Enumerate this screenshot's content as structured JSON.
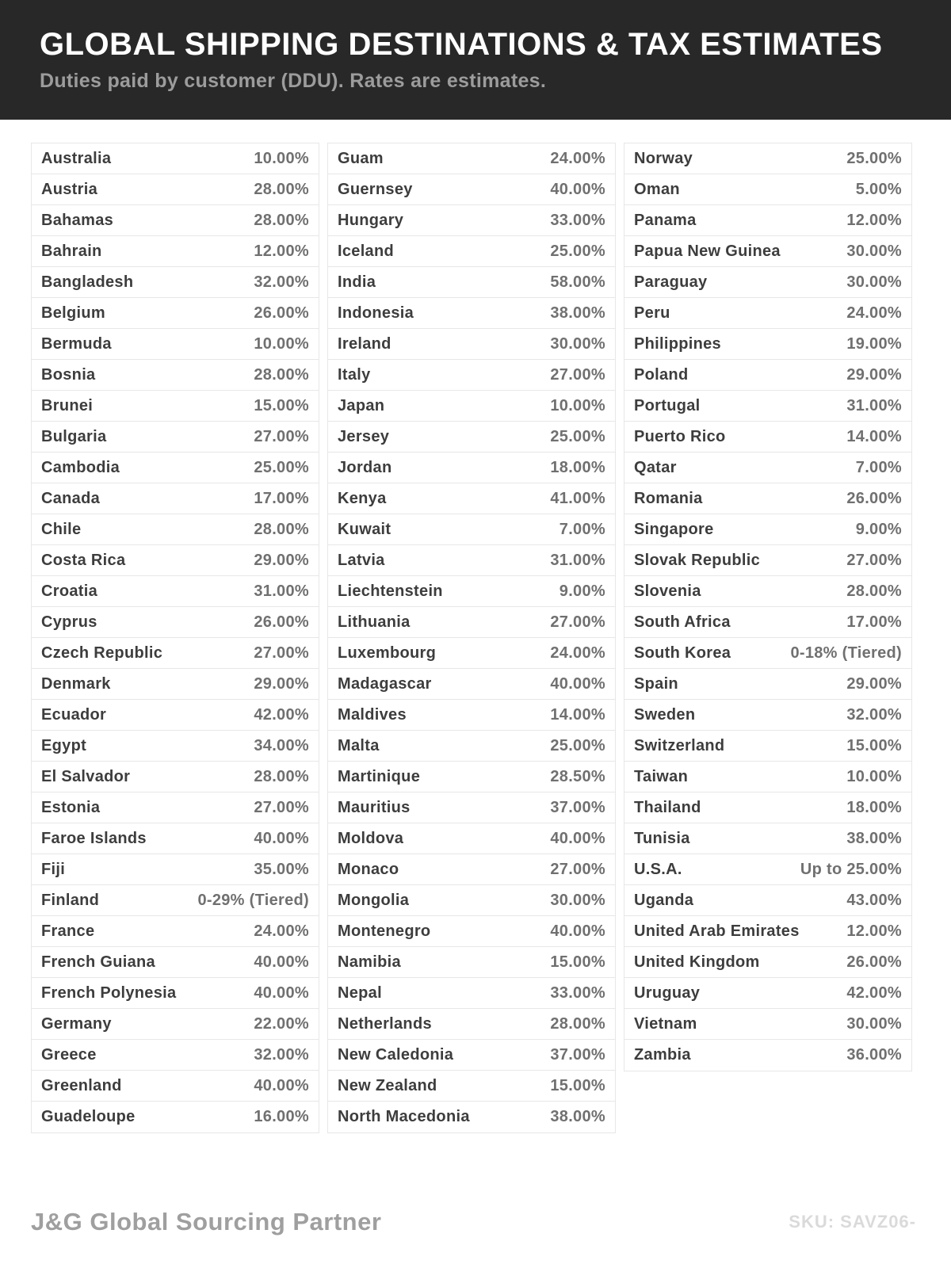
{
  "header": {
    "title": "GLOBAL SHIPPING DESTINATIONS & TAX ESTIMATES",
    "subtitle": "Duties paid by customer (DDU). Rates are estimates."
  },
  "table": {
    "columns": [
      {
        "rows": [
          {
            "country": "Australia",
            "rate": "10.00%"
          },
          {
            "country": "Austria",
            "rate": "28.00%"
          },
          {
            "country": "Bahamas",
            "rate": "28.00%"
          },
          {
            "country": "Bahrain",
            "rate": "12.00%"
          },
          {
            "country": "Bangladesh",
            "rate": "32.00%"
          },
          {
            "country": "Belgium",
            "rate": "26.00%"
          },
          {
            "country": "Bermuda",
            "rate": "10.00%"
          },
          {
            "country": "Bosnia",
            "rate": "28.00%"
          },
          {
            "country": "Brunei",
            "rate": "15.00%"
          },
          {
            "country": "Bulgaria",
            "rate": "27.00%"
          },
          {
            "country": "Cambodia",
            "rate": "25.00%"
          },
          {
            "country": "Canada",
            "rate": "17.00%"
          },
          {
            "country": "Chile",
            "rate": "28.00%"
          },
          {
            "country": "Costa Rica",
            "rate": "29.00%"
          },
          {
            "country": "Croatia",
            "rate": "31.00%"
          },
          {
            "country": "Cyprus",
            "rate": "26.00%"
          },
          {
            "country": "Czech Republic",
            "rate": "27.00%"
          },
          {
            "country": "Denmark",
            "rate": "29.00%"
          },
          {
            "country": "Ecuador",
            "rate": "42.00%"
          },
          {
            "country": "Egypt",
            "rate": "34.00%"
          },
          {
            "country": "El Salvador",
            "rate": "28.00%"
          },
          {
            "country": "Estonia",
            "rate": "27.00%"
          },
          {
            "country": "Faroe Islands",
            "rate": "40.00%"
          },
          {
            "country": "Fiji",
            "rate": "35.00%"
          },
          {
            "country": "Finland",
            "rate": "0-29% (Tiered)"
          },
          {
            "country": "France",
            "rate": "24.00%"
          },
          {
            "country": "French Guiana",
            "rate": "40.00%"
          },
          {
            "country": "French Polynesia",
            "rate": "40.00%"
          },
          {
            "country": "Germany",
            "rate": "22.00%"
          },
          {
            "country": "Greece",
            "rate": "32.00%"
          },
          {
            "country": "Greenland",
            "rate": "40.00%"
          },
          {
            "country": "Guadeloupe",
            "rate": "16.00%"
          }
        ]
      },
      {
        "rows": [
          {
            "country": "Guam",
            "rate": "24.00%"
          },
          {
            "country": "Guernsey",
            "rate": "40.00%"
          },
          {
            "country": "Hungary",
            "rate": "33.00%"
          },
          {
            "country": "Iceland",
            "rate": "25.00%"
          },
          {
            "country": "India",
            "rate": "58.00%"
          },
          {
            "country": "Indonesia",
            "rate": "38.00%"
          },
          {
            "country": "Ireland",
            "rate": "30.00%"
          },
          {
            "country": "Italy",
            "rate": "27.00%"
          },
          {
            "country": "Japan",
            "rate": "10.00%"
          },
          {
            "country": "Jersey",
            "rate": "25.00%"
          },
          {
            "country": "Jordan",
            "rate": "18.00%"
          },
          {
            "country": "Kenya",
            "rate": "41.00%"
          },
          {
            "country": "Kuwait",
            "rate": "7.00%"
          },
          {
            "country": "Latvia",
            "rate": "31.00%"
          },
          {
            "country": "Liechtenstein",
            "rate": "9.00%"
          },
          {
            "country": "Lithuania",
            "rate": "27.00%"
          },
          {
            "country": "Luxembourg",
            "rate": "24.00%"
          },
          {
            "country": "Madagascar",
            "rate": "40.00%"
          },
          {
            "country": "Maldives",
            "rate": "14.00%"
          },
          {
            "country": "Malta",
            "rate": "25.00%"
          },
          {
            "country": "Martinique",
            "rate": "28.50%"
          },
          {
            "country": "Mauritius",
            "rate": "37.00%"
          },
          {
            "country": "Moldova",
            "rate": "40.00%"
          },
          {
            "country": "Monaco",
            "rate": "27.00%"
          },
          {
            "country": "Mongolia",
            "rate": "30.00%"
          },
          {
            "country": "Montenegro",
            "rate": "40.00%"
          },
          {
            "country": "Namibia",
            "rate": "15.00%"
          },
          {
            "country": "Nepal",
            "rate": "33.00%"
          },
          {
            "country": "Netherlands",
            "rate": "28.00%"
          },
          {
            "country": "New Caledonia",
            "rate": "37.00%"
          },
          {
            "country": "New Zealand",
            "rate": "15.00%"
          },
          {
            "country": "North Macedonia",
            "rate": "38.00%"
          }
        ]
      },
      {
        "rows": [
          {
            "country": "Norway",
            "rate": "25.00%"
          },
          {
            "country": "Oman",
            "rate": "5.00%"
          },
          {
            "country": "Panama",
            "rate": "12.00%"
          },
          {
            "country": "Papua New Guinea",
            "rate": "30.00%"
          },
          {
            "country": "Paraguay",
            "rate": "30.00%"
          },
          {
            "country": "Peru",
            "rate": "24.00%"
          },
          {
            "country": "Philippines",
            "rate": "19.00%"
          },
          {
            "country": "Poland",
            "rate": "29.00%"
          },
          {
            "country": "Portugal",
            "rate": "31.00%"
          },
          {
            "country": "Puerto Rico",
            "rate": "14.00%"
          },
          {
            "country": "Qatar",
            "rate": "7.00%"
          },
          {
            "country": "Romania",
            "rate": "26.00%"
          },
          {
            "country": "Singapore",
            "rate": "9.00%"
          },
          {
            "country": "Slovak Republic",
            "rate": "27.00%"
          },
          {
            "country": "Slovenia",
            "rate": "28.00%"
          },
          {
            "country": "South Africa",
            "rate": "17.00%"
          },
          {
            "country": "South Korea",
            "rate": "0-18% (Tiered)"
          },
          {
            "country": "Spain",
            "rate": "29.00%"
          },
          {
            "country": "Sweden",
            "rate": "32.00%"
          },
          {
            "country": "Switzerland",
            "rate": "15.00%"
          },
          {
            "country": "Taiwan",
            "rate": "10.00%"
          },
          {
            "country": "Thailand",
            "rate": "18.00%"
          },
          {
            "country": "Tunisia",
            "rate": "38.00%"
          },
          {
            "country": "U.S.A.",
            "rate": "Up to 25.00%"
          },
          {
            "country": "Uganda",
            "rate": "43.00%"
          },
          {
            "country": "United Arab Emirates",
            "rate": "12.00%"
          },
          {
            "country": "United Kingdom",
            "rate": "26.00%"
          },
          {
            "country": "Uruguay",
            "rate": "42.00%"
          },
          {
            "country": "Vietnam",
            "rate": "30.00%"
          },
          {
            "country": "Zambia",
            "rate": "36.00%"
          }
        ]
      }
    ]
  },
  "footer": {
    "brand": "J&G Global Sourcing Partner",
    "sku": "SKU: SAVZ06-"
  },
  "colors": {
    "header_background": "#282828",
    "title_text": "#ffffff",
    "subtitle_text": "#9c9c9c",
    "country_text": "#3d3d3d",
    "rate_text": "#707070",
    "cell_border": "#e7e7e7",
    "footer_brand_text": "#9f9f9f",
    "sku_text": "#dadada"
  }
}
